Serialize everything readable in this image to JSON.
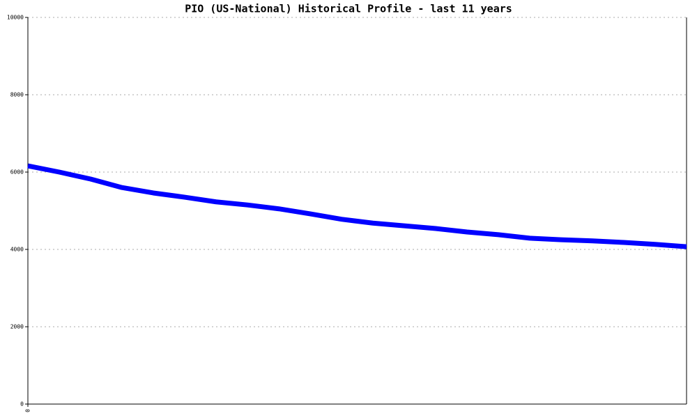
{
  "chart_data": {
    "type": "line",
    "title": "PIO (US-National) Historical Profile - last 11 years",
    "categories": [
      "0",
      null,
      null,
      null,
      null,
      null,
      null,
      null,
      null,
      null,
      null,
      null,
      null,
      null,
      null,
      null,
      null,
      null,
      null,
      null,
      null,
      null
    ],
    "series": [
      {
        "color": "#0000ff",
        "values": [
          6160,
          6000,
          5820,
          5600,
          5460,
          5350,
          5230,
          5150,
          5050,
          4920,
          4780,
          4680,
          4610,
          4540,
          4450,
          4380,
          4290,
          4250,
          4220,
          4180,
          4130,
          4070
        ]
      }
    ],
    "ylim": [
      0,
      10000
    ],
    "yticks": [
      0,
      2000,
      4000,
      6000,
      8000,
      10000
    ],
    "grid": true
  }
}
